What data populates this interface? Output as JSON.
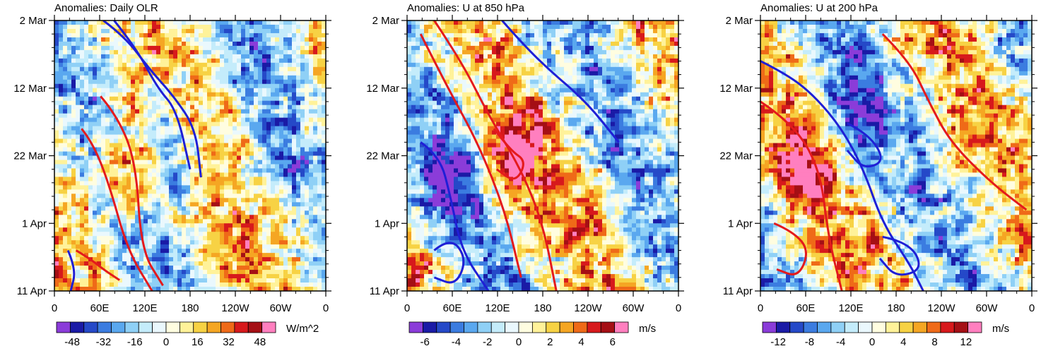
{
  "chart_data": [
    {
      "type": "heatmap",
      "title": "Anomalies: Daily OLR",
      "ylabels": [
        "2 Mar",
        "12 Mar",
        "22 Mar",
        "1 Apr",
        "11 Apr"
      ],
      "xlabels": [
        "0",
        "60E",
        "120E",
        "180",
        "120W",
        "60W",
        "0"
      ],
      "colorbar": {
        "ticks": [
          "-48",
          "-32",
          "-16",
          "0",
          "16",
          "32",
          "48"
        ],
        "units": "W/m^2",
        "min": -56,
        "max": 56
      },
      "field": {
        "seed": 11,
        "band_slope": 0.9,
        "band_offset": 0.15,
        "pos_center": [
          0.27,
          0.55
        ],
        "neg_center": [
          0.45,
          0.45
        ]
      },
      "contours": {
        "red": [
          [
            [
              0.17,
              0.28
            ],
            [
              0.23,
              0.35
            ],
            [
              0.3,
              0.52
            ],
            [
              0.32,
              0.85
            ],
            [
              0.4,
              0.98
            ]
          ],
          [
            [
              0.1,
              0.4
            ],
            [
              0.14,
              0.45
            ],
            [
              0.2,
              0.6
            ],
            [
              0.27,
              0.85
            ],
            [
              0.36,
              1.0
            ]
          ],
          [
            [
              0.08,
              0.85
            ],
            [
              0.13,
              0.88
            ],
            [
              0.18,
              0.92
            ],
            [
              0.24,
              0.96
            ]
          ]
        ],
        "blue": [
          [
            [
              0.22,
              0.0
            ],
            [
              0.3,
              0.1
            ],
            [
              0.38,
              0.25
            ],
            [
              0.45,
              0.33
            ],
            [
              0.5,
              0.55
            ]
          ],
          [
            [
              0.18,
              0.0
            ],
            [
              0.26,
              0.06
            ],
            [
              0.35,
              0.18
            ],
            [
              0.44,
              0.28
            ],
            [
              0.52,
              0.4
            ],
            [
              0.54,
              0.58
            ]
          ],
          [
            [
              0.05,
              0.85
            ],
            [
              0.08,
              0.92
            ],
            [
              0.06,
              1.0
            ]
          ]
        ]
      }
    },
    {
      "type": "heatmap",
      "title": "Anomalies: U at 850 hPa",
      "ylabels": [
        "2 Mar",
        "12 Mar",
        "22 Mar",
        "1 Apr",
        "11 Apr"
      ],
      "xlabels": [
        "0",
        "60E",
        "120E",
        "180",
        "120W",
        "60W",
        "0"
      ],
      "colorbar": {
        "ticks": [
          "-6",
          "-4",
          "-2",
          "0",
          "2",
          "4",
          "6"
        ],
        "units": "m/s",
        "min": -7,
        "max": 7
      },
      "field": {
        "seed": 23,
        "band_slope": 1.0,
        "band_offset": 0.05,
        "pos_center": [
          0.4,
          0.5
        ],
        "neg_center": [
          0.15,
          0.6
        ]
      },
      "contours": {
        "red": [
          [
            [
              0.1,
              0.0
            ],
            [
              0.2,
              0.15
            ],
            [
              0.3,
              0.35
            ],
            [
              0.42,
              0.55
            ],
            [
              0.5,
              0.75
            ],
            [
              0.55,
              1.0
            ]
          ],
          [
            [
              0.05,
              0.05
            ],
            [
              0.15,
              0.25
            ],
            [
              0.26,
              0.45
            ],
            [
              0.36,
              0.7
            ],
            [
              0.42,
              0.95
            ]
          ],
          [
            [
              0.32,
              0.4
            ],
            [
              0.38,
              0.48
            ],
            [
              0.44,
              0.52
            ],
            [
              0.4,
              0.6
            ],
            [
              0.33,
              0.55
            ]
          ]
        ],
        "blue": [
          [
            [
              0.35,
              0.0
            ],
            [
              0.42,
              0.08
            ],
            [
              0.52,
              0.18
            ],
            [
              0.66,
              0.3
            ],
            [
              0.78,
              0.45
            ]
          ],
          [
            [
              0.05,
              0.45
            ],
            [
              0.12,
              0.5
            ],
            [
              0.16,
              0.65
            ],
            [
              0.2,
              0.85
            ],
            [
              0.3,
              1.0
            ]
          ],
          [
            [
              0.1,
              0.85
            ],
            [
              0.16,
              0.8
            ],
            [
              0.22,
              0.88
            ],
            [
              0.18,
              0.98
            ],
            [
              0.1,
              0.95
            ]
          ]
        ]
      }
    },
    {
      "type": "heatmap",
      "title": "Anomalies: U at 200 hPa",
      "ylabels": [
        "2 Mar",
        "12 Mar",
        "22 Mar",
        "1 Apr",
        "11 Apr"
      ],
      "xlabels": [
        "0",
        "60E",
        "120E",
        "180",
        "120W",
        "60W",
        "0"
      ],
      "colorbar": {
        "ticks": [
          "-12",
          "-8",
          "-4",
          "0",
          "4",
          "8",
          "12"
        ],
        "units": "m/s",
        "min": -14,
        "max": 14
      },
      "field": {
        "seed": 37,
        "band_slope": 1.0,
        "band_offset": 0.45,
        "pos_center": [
          0.15,
          0.55
        ],
        "neg_center": [
          0.35,
          0.35
        ]
      },
      "contours": {
        "red": [
          [
            [
              0.0,
              0.3
            ],
            [
              0.12,
              0.38
            ],
            [
              0.22,
              0.55
            ],
            [
              0.25,
              0.8
            ],
            [
              0.3,
              1.0
            ]
          ],
          [
            [
              0.05,
              0.75
            ],
            [
              0.12,
              0.78
            ],
            [
              0.18,
              0.85
            ],
            [
              0.14,
              0.95
            ],
            [
              0.06,
              0.92
            ]
          ],
          [
            [
              0.45,
              0.05
            ],
            [
              0.55,
              0.15
            ],
            [
              0.62,
              0.3
            ],
            [
              0.7,
              0.45
            ],
            [
              0.85,
              0.6
            ],
            [
              0.98,
              0.7
            ]
          ]
        ],
        "blue": [
          [
            [
              0.0,
              0.15
            ],
            [
              0.1,
              0.2
            ],
            [
              0.2,
              0.28
            ],
            [
              0.3,
              0.4
            ],
            [
              0.38,
              0.55
            ],
            [
              0.45,
              0.75
            ],
            [
              0.55,
              0.9
            ],
            [
              0.6,
              1.0
            ]
          ],
          [
            [
              0.32,
              0.38
            ],
            [
              0.4,
              0.42
            ],
            [
              0.46,
              0.52
            ],
            [
              0.38,
              0.55
            ],
            [
              0.32,
              0.48
            ]
          ],
          [
            [
              0.45,
              0.8
            ],
            [
              0.55,
              0.82
            ],
            [
              0.6,
              0.92
            ],
            [
              0.5,
              0.95
            ],
            [
              0.44,
              0.88
            ]
          ]
        ]
      }
    }
  ]
}
